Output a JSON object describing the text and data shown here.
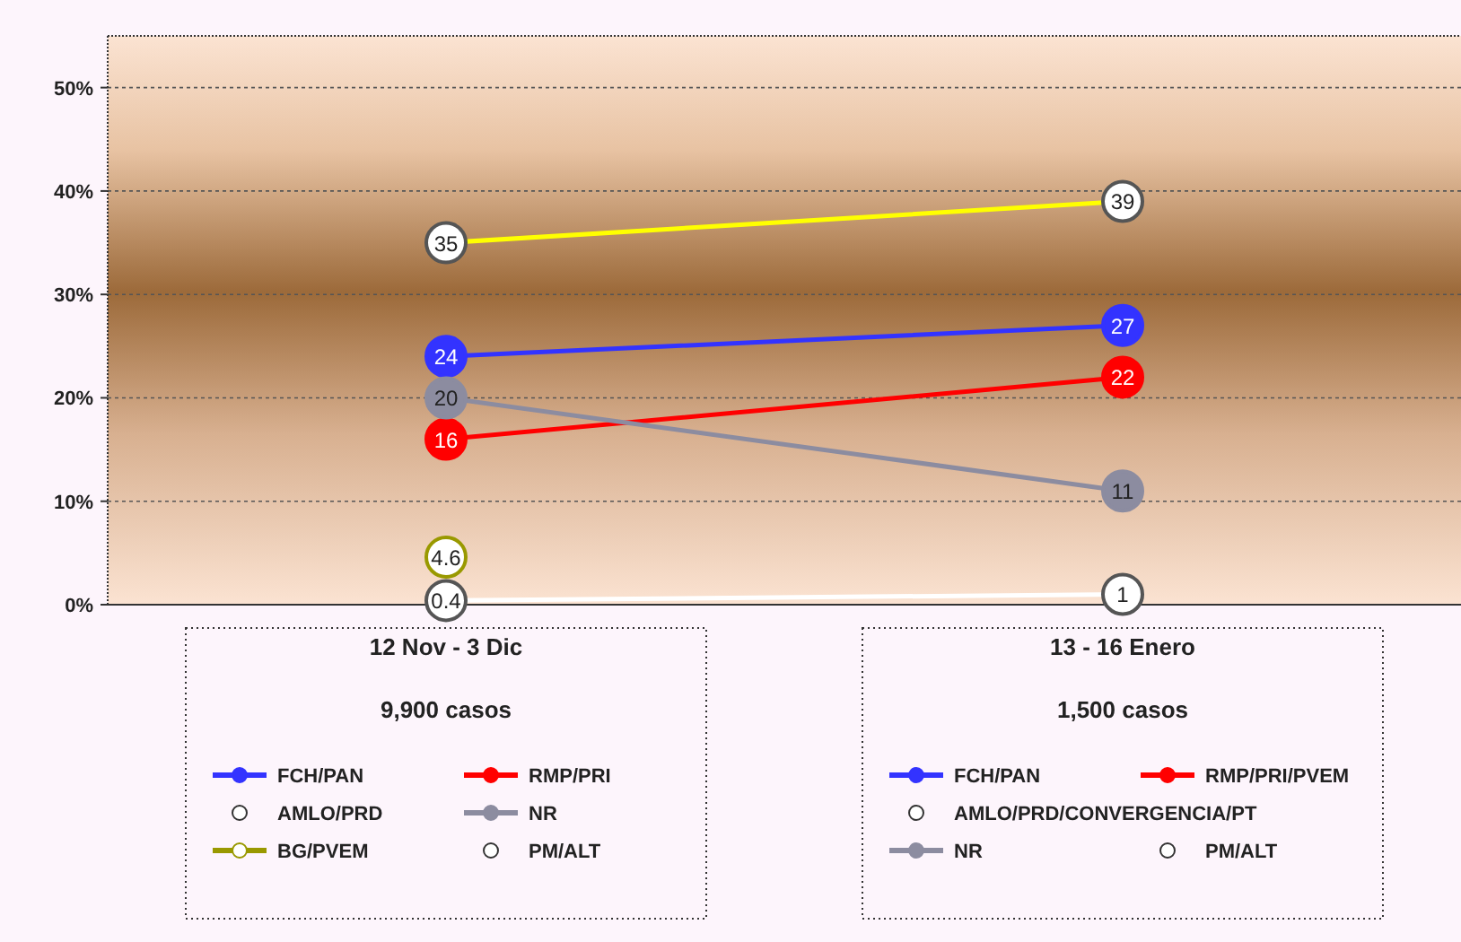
{
  "chart_data": {
    "type": "line",
    "categories": [
      "12 Nov - 3 Dic",
      "13 - 16 Enero"
    ],
    "ylim": [
      0,
      55
    ],
    "yticks": [
      {
        "value": 0,
        "label": "0%"
      },
      {
        "value": 10,
        "label": "10%"
      },
      {
        "value": 20,
        "label": "20%"
      },
      {
        "value": 30,
        "label": "30%"
      },
      {
        "value": 40,
        "label": "40%"
      },
      {
        "value": 50,
        "label": "50%"
      }
    ],
    "grid": "y",
    "marker": "circle",
    "data_labels": true,
    "legend": "bottom",
    "annotations": [
      "9,900 casos",
      "1,500 casos",
      "FCH/PAN",
      "RMP/PRI/PVEM",
      "AMLO/PRD/CONVERGENCIA/PT",
      "NR",
      "PM/ALT"
    ],
    "series": [
      {
        "name": "FCH/PAN",
        "color": "#3333ff",
        "values": [
          24,
          27
        ]
      },
      {
        "name": "RMP/PRI",
        "color": "#ff0000",
        "values": [
          16,
          22
        ]
      },
      {
        "name": "AMLO/PRD",
        "color": "#ffff00",
        "values": [
          35,
          39
        ]
      },
      {
        "name": "NR",
        "color": "#8c8ca0",
        "values": [
          20,
          11
        ]
      },
      {
        "name": "BG/PVEM",
        "color": "#999900",
        "values": [
          4.6,
          null
        ]
      },
      {
        "name": "PM/ALT",
        "color": "#ffffff",
        "values": [
          0.4,
          1
        ]
      }
    ]
  }
}
